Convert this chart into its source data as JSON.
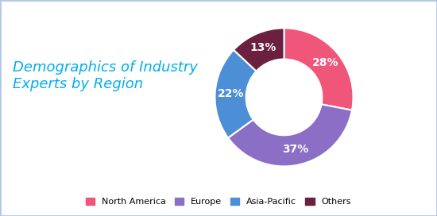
{
  "title": "Demographics of Industry\nExperts by Region",
  "title_color": "#00AEEF",
  "title_fontsize": 13,
  "labels": [
    "North America",
    "Europe",
    "Asia-Pacific",
    "Others"
  ],
  "values": [
    28,
    37,
    22,
    13
  ],
  "colors": [
    "#F0567A",
    "#8B6FC6",
    "#4D8FD6",
    "#6B2040"
  ],
  "pct_labels": [
    "28%",
    "37%",
    "22%",
    "13%"
  ],
  "background_color": "#FFFFFF",
  "border_color": "#B0C8E8",
  "legend_labels": [
    "North America",
    "Europe",
    "Asia-Pacific",
    "Others"
  ],
  "donut_width": 0.45
}
